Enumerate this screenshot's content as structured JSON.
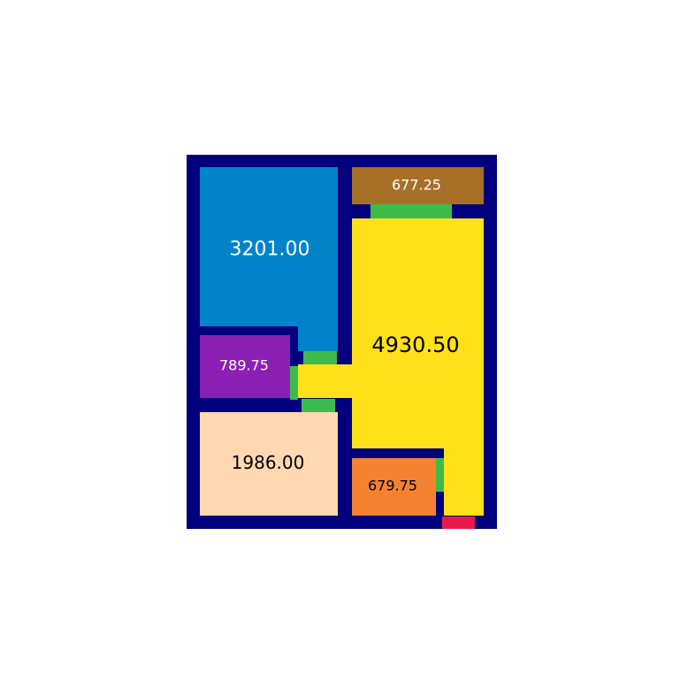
{
  "colors": {
    "wall": "#00007f",
    "door": "#3dbb4a",
    "entrance": "#e8194a",
    "background": "#ffffff"
  },
  "rooms": [
    {
      "id": "room-blue",
      "label": "3201.00",
      "fill": "#0083c8",
      "text_color": "#ffffff"
    },
    {
      "id": "room-brown",
      "label": "677.25",
      "fill": "#a87027",
      "text_color": "#ffffff"
    },
    {
      "id": "room-yellow",
      "label": "4930.50",
      "fill": "#ffe119",
      "text_color": "#000000"
    },
    {
      "id": "room-purple",
      "label": "789.75",
      "fill": "#8c1fb4",
      "text_color": "#ffffff"
    },
    {
      "id": "room-peach",
      "label": "1986.00",
      "fill": "#ffd8b1",
      "text_color": "#000000"
    },
    {
      "id": "room-orange",
      "label": "679.75",
      "fill": "#f58231",
      "text_color": "#000000"
    }
  ]
}
